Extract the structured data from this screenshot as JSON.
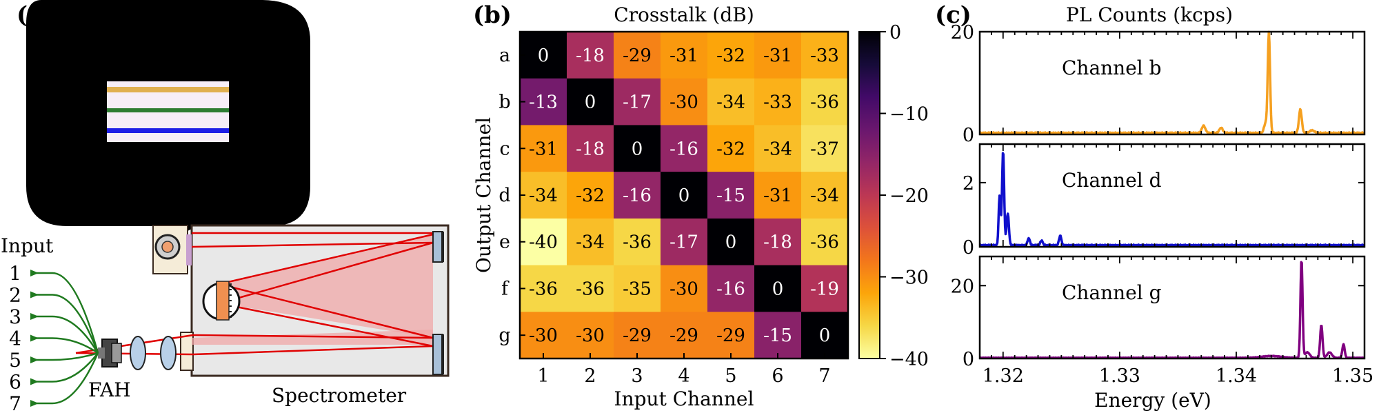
{
  "panels": {
    "a": {
      "label": "(a)",
      "input_label": "Input",
      "input_numbers": [
        "1",
        "2",
        "3",
        "4",
        "5",
        "6",
        "7"
      ],
      "fah_label": "FAH",
      "spectrometer_label": "Spectrometer",
      "fiber_colors": [
        "#e0b050",
        "#2e7d32",
        "#1e1ee6"
      ]
    },
    "b": {
      "label": "(b)"
    },
    "c": {
      "label": "(c)"
    }
  },
  "chart_data": [
    {
      "type": "heatmap",
      "title": "Crosstalk (dB)",
      "xlabel": "Input Channel",
      "ylabel": "Output Channel",
      "x_categories": [
        "1",
        "2",
        "3",
        "4",
        "5",
        "6",
        "7"
      ],
      "y_categories": [
        "a",
        "b",
        "c",
        "d",
        "e",
        "f",
        "g"
      ],
      "values": [
        [
          0,
          -18,
          -29,
          -31,
          -32,
          -31,
          -33
        ],
        [
          -13,
          0,
          -17,
          -30,
          -34,
          -33,
          -36
        ],
        [
          -31,
          -18,
          0,
          -16,
          -32,
          -34,
          -37
        ],
        [
          -34,
          -32,
          -16,
          0,
          -15,
          -31,
          -34
        ],
        [
          -40,
          -34,
          -36,
          -17,
          0,
          -18,
          -36
        ],
        [
          -36,
          -36,
          -35,
          -30,
          -16,
          0,
          -19
        ],
        [
          -30,
          -30,
          -29,
          -29,
          -29,
          -15,
          0
        ]
      ],
      "colorbar": {
        "range": [
          -40,
          0
        ],
        "ticks": [
          0,
          -10,
          -20,
          -30,
          -40
        ],
        "tick_labels": [
          "0",
          "−10",
          "−20",
          "−30",
          "−40"
        ],
        "colormap": "inferno"
      }
    },
    {
      "type": "line",
      "title": "PL Counts (kcps)",
      "xlabel": "Energy (eV)",
      "xlim": [
        1.318,
        1.351
      ],
      "x_ticks": [
        1.32,
        1.33,
        1.34,
        1.35
      ],
      "x_tick_labels": [
        "1.32",
        "1.33",
        "1.34",
        "1.35"
      ],
      "series": [
        {
          "name": "Channel b",
          "color": "#f5a020",
          "ylim": [
            0,
            20
          ],
          "y_ticks": [
            0,
            20
          ],
          "y_tick_labels": [
            "0",
            "20"
          ],
          "baseline": 0.3,
          "peaks": [
            [
              1.3372,
              1.4,
              0.00015
            ],
            [
              1.3387,
              1.0,
              0.00015
            ],
            [
              1.3425,
              1.8,
              0.00012
            ],
            [
              1.3428,
              19.5,
              0.0001
            ],
            [
              1.3455,
              4.6,
              0.00012
            ],
            [
              1.3465,
              0.5,
              0.0002
            ]
          ]
        },
        {
          "name": "Channel d",
          "color": "#1010cc",
          "ylim": [
            0,
            3.2
          ],
          "y_ticks": [
            0,
            2
          ],
          "y_tick_labels": [
            "0",
            "2"
          ],
          "baseline": 0.05,
          "peaks": [
            [
              1.3197,
              1.55,
              8e-05
            ],
            [
              1.32,
              2.95,
              9e-05
            ],
            [
              1.3204,
              1.0,
              0.0001
            ],
            [
              1.3222,
              0.22,
              0.0001
            ],
            [
              1.3233,
              0.15,
              0.0001
            ],
            [
              1.3249,
              0.3,
              0.0001
            ]
          ]
        },
        {
          "name": "Channel g",
          "color": "#800080",
          "ylim": [
            0,
            28
          ],
          "y_ticks": [
            0,
            20
          ],
          "y_tick_labels": [
            "0",
            "20"
          ],
          "baseline": 0.2,
          "peaks": [
            [
              1.343,
              0.5,
              0.0008
            ],
            [
              1.3456,
              27.0,
              9e-05
            ],
            [
              1.3461,
              1.5,
              0.0002
            ],
            [
              1.3473,
              9.0,
              0.0001
            ],
            [
              1.348,
              1.5,
              0.0002
            ],
            [
              1.3492,
              3.7,
              0.0001
            ]
          ]
        }
      ]
    }
  ]
}
